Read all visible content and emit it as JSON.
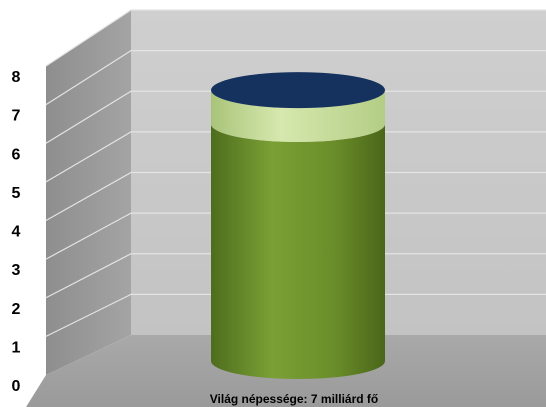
{
  "chart_data": {
    "type": "bar",
    "style": "3d-cylinder",
    "categories": [
      "Világ népessége: 7 milliárd fő"
    ],
    "series": [
      {
        "values": [
          6.3
        ],
        "color": "#6b8e2a"
      },
      {
        "values": [
          0.9
        ],
        "color": "#c9df9a"
      }
    ],
    "total": 7.2,
    "top_color": "#15325e",
    "y_ticks": [
      "0",
      "1",
      "2",
      "3",
      "4",
      "5",
      "6",
      "7",
      "8"
    ],
    "ylim": [
      0,
      8
    ],
    "grid": true,
    "legend": false,
    "title": "",
    "xlabel": "",
    "ylabel": ""
  }
}
